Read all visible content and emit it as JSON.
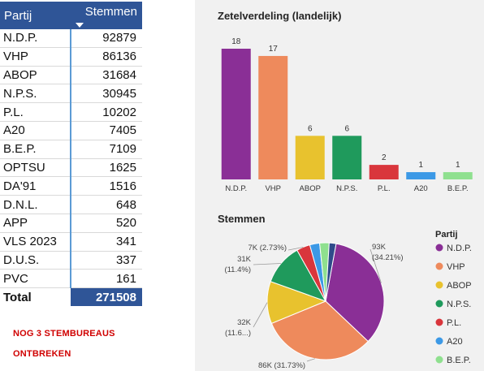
{
  "table": {
    "headers": {
      "party": "Partij",
      "votes": "Stemmen"
    },
    "rows": [
      {
        "party": "N.D.P.",
        "votes": "92879"
      },
      {
        "party": "VHP",
        "votes": "86136"
      },
      {
        "party": "ABOP",
        "votes": "31684"
      },
      {
        "party": "N.P.S.",
        "votes": "30945"
      },
      {
        "party": "P.L.",
        "votes": "10202"
      },
      {
        "party": "A20",
        "votes": "7405"
      },
      {
        "party": "B.E.P.",
        "votes": "7109"
      },
      {
        "party": "OPTSU",
        "votes": "1625"
      },
      {
        "party": "DA'91",
        "votes": "1516"
      },
      {
        "party": "D.N.L.",
        "votes": "648"
      },
      {
        "party": "APP",
        "votes": "520"
      },
      {
        "party": "VLS 2023",
        "votes": "341"
      },
      {
        "party": "D.U.S.",
        "votes": "337"
      },
      {
        "party": "PVC",
        "votes": "161"
      }
    ],
    "total_label": "Total",
    "total_value": "271508"
  },
  "notice": {
    "line1": "NOG 3 STEMBUREAUS",
    "line2": "ONTBREKEN"
  },
  "chart_data": [
    {
      "type": "bar",
      "title": "Zetelverdeling (landelijk)",
      "categories": [
        "N.D.P.",
        "VHP",
        "ABOP",
        "N.P.S.",
        "P.L.",
        "A20",
        "B.E.P."
      ],
      "values": [
        18,
        17,
        6,
        6,
        2,
        1,
        1
      ],
      "colors": [
        "#8a2f96",
        "#ee8a5c",
        "#e8c22e",
        "#1f9a5c",
        "#d9363c",
        "#3c99e6",
        "#8fe08f"
      ],
      "ylim": [
        0,
        18
      ],
      "grid": false
    },
    {
      "type": "pie",
      "title": "Stemmen",
      "legend_title": "Partij",
      "legend_position": "right",
      "categories": [
        "N.D.P.",
        "VHP",
        "ABOP",
        "N.P.S.",
        "P.L.",
        "A20",
        "B.E.P."
      ],
      "values": [
        92879,
        86136,
        31684,
        30945,
        10202,
        7405,
        7109
      ],
      "colors": [
        "#8a2f96",
        "#ee8a5c",
        "#e8c22e",
        "#1f9a5c",
        "#d9363c",
        "#3c99e6",
        "#8fe08f"
      ],
      "other_color": "#2f4a8a",
      "data_labels": [
        {
          "value": "93K",
          "pct": "(34.21%)"
        },
        {
          "value": "86K (31.73%)"
        },
        {
          "value": "32K",
          "pct": "(11.6...)"
        },
        {
          "value": "31K",
          "pct": "(11.4%)"
        },
        {
          "value": "7K (2.73%)"
        }
      ]
    }
  ]
}
